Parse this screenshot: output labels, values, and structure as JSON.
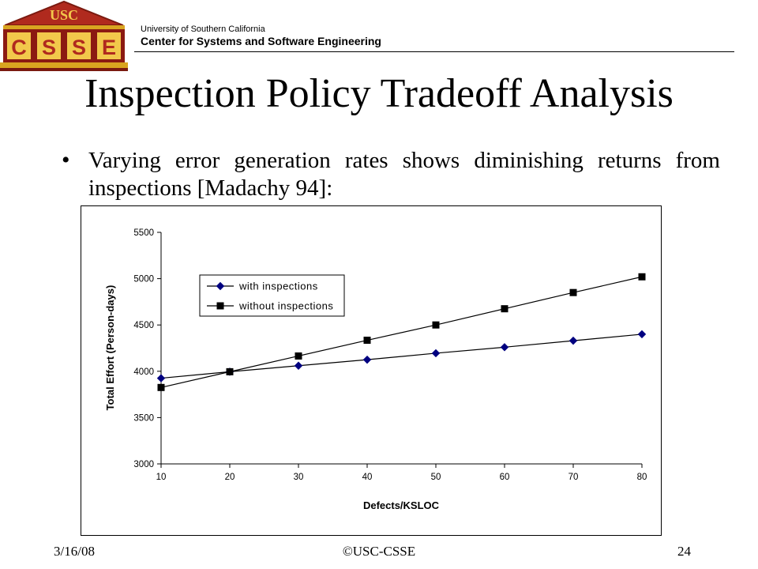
{
  "header": {
    "logo_top_text": "USC",
    "logo_letters": [
      "C",
      "S",
      "S",
      "E"
    ],
    "org_line1": "University of Southern California",
    "org_line2": "Center for Systems and Software Engineering"
  },
  "slide": {
    "title": "Inspection Policy Tradeoff Analysis",
    "bullet": "Varying error generation rates shows diminishing returns from inspections [Madachy 94]:"
  },
  "footer": {
    "date": "3/16/08",
    "copyright": "©USC-CSSE",
    "page": "24"
  },
  "chart_data": {
    "type": "line",
    "x": [
      10,
      20,
      30,
      40,
      50,
      60,
      70,
      80
    ],
    "xlabel": "Defects/KSLOC",
    "ylabel": "Total Effort (Person-days)",
    "xlim": [
      10,
      80
    ],
    "ylim": [
      3000,
      5500
    ],
    "xticks": [
      10,
      20,
      30,
      40,
      50,
      60,
      70,
      80
    ],
    "yticks": [
      3000,
      3500,
      4000,
      4500,
      5000,
      5500
    ],
    "grid": false,
    "legend_position": "upper-left",
    "series": [
      {
        "name": "with inspections",
        "marker": "diamond",
        "color": "#000080",
        "values": [
          3925,
          3995,
          4060,
          4125,
          4195,
          4260,
          4330,
          4400
        ]
      },
      {
        "name": "without inspections",
        "marker": "square",
        "color": "#000000",
        "values": [
          3825,
          3995,
          4165,
          4335,
          4500,
          4675,
          4850,
          5020
        ]
      }
    ]
  }
}
